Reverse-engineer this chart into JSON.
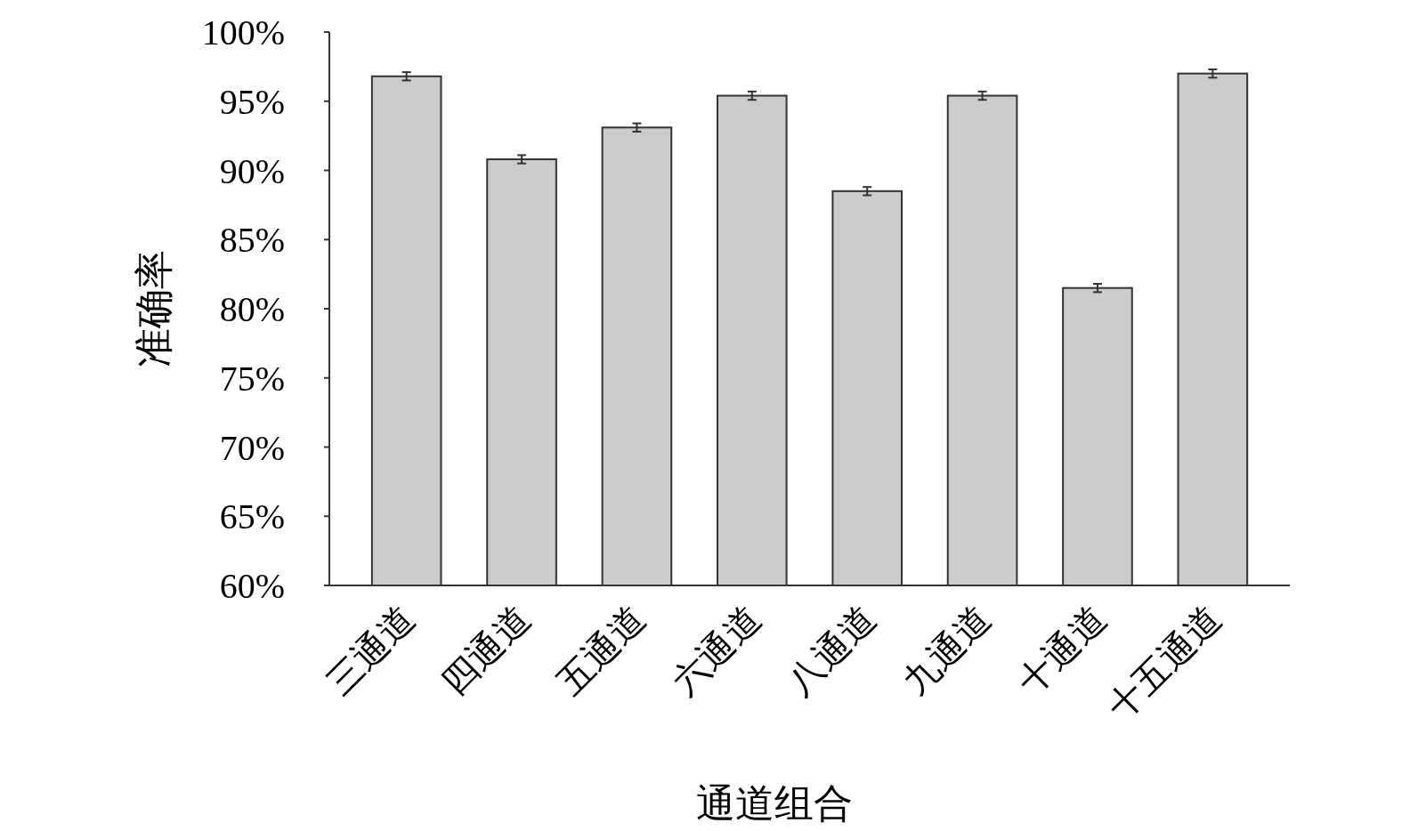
{
  "chart_data": {
    "type": "bar",
    "xlabel": "通道组合",
    "ylabel": "准确率",
    "categories": [
      "三通道",
      "四通道",
      "五通道",
      "六通道",
      "八通道",
      "九通道",
      "十通道",
      "十五通道"
    ],
    "values": [
      96.8,
      90.8,
      93.1,
      95.4,
      88.5,
      95.4,
      81.5,
      97.0
    ],
    "errors": [
      0.3,
      0.3,
      0.3,
      0.3,
      0.3,
      0.3,
      0.3,
      0.3
    ],
    "color": "#cccccc",
    "ylim": [
      60,
      100
    ],
    "yticks": [
      {
        "value": 60,
        "label": "60%"
      },
      {
        "value": 65,
        "label": "65%"
      },
      {
        "value": 70,
        "label": "70%"
      },
      {
        "value": 75,
        "label": "75%"
      },
      {
        "value": 80,
        "label": "80%"
      },
      {
        "value": 85,
        "label": "85%"
      },
      {
        "value": 90,
        "label": "90%"
      },
      {
        "value": 95,
        "label": "95%"
      },
      {
        "value": 100,
        "label": "100%"
      }
    ],
    "grid": false
  }
}
